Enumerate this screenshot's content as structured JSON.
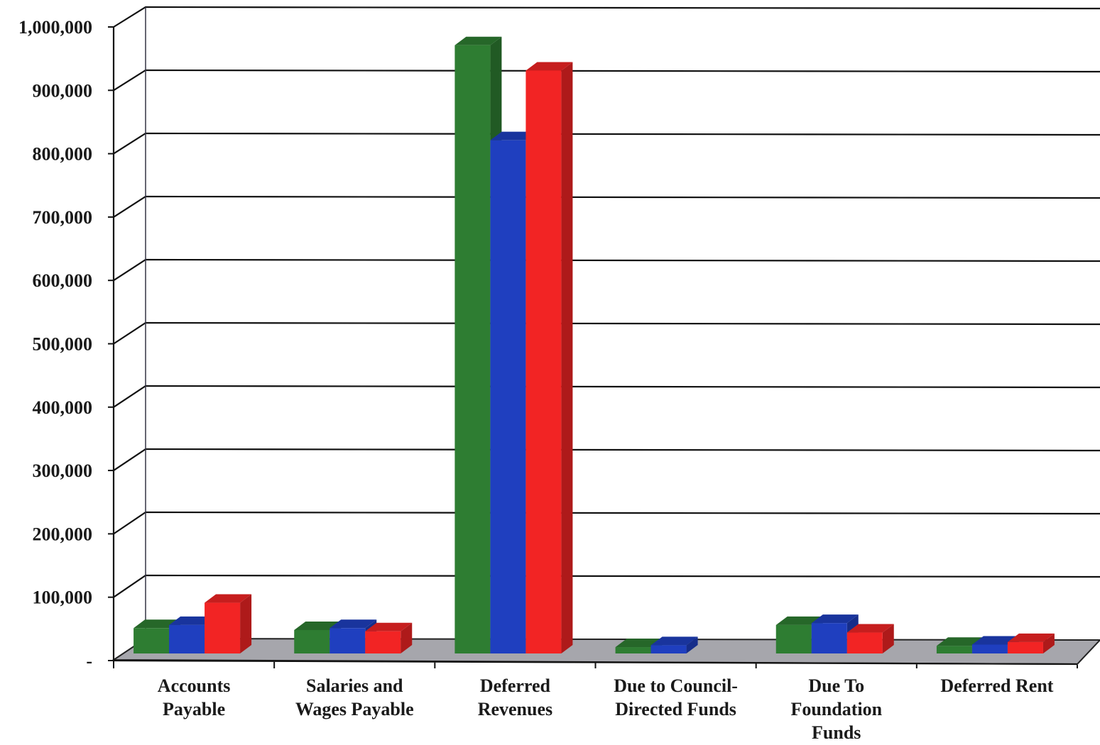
{
  "chart_data": {
    "type": "bar",
    "categories": [
      [
        "Accounts",
        "Payable"
      ],
      [
        "Salaries and",
        "Wages Payable"
      ],
      [
        "Deferred",
        "Revenues"
      ],
      [
        "Due to Council-",
        "Directed Funds"
      ],
      [
        "Due To",
        "Foundation",
        "Funds"
      ],
      [
        "Deferred Rent"
      ]
    ],
    "series": [
      {
        "color": "#2e7d32",
        "values": [
          40000,
          37000,
          960000,
          10000,
          45000,
          12000
        ]
      },
      {
        "color": "#1f3fbf",
        "values": [
          45000,
          40000,
          810000,
          13000,
          48000,
          14000
        ]
      },
      {
        "color": "#f22424",
        "values": [
          80000,
          35000,
          920000,
          0,
          33000,
          18000
        ]
      }
    ],
    "y_ticks": [
      "-",
      "100,000",
      "200,000",
      "300,000",
      "400,000",
      "500,000",
      "600,000",
      "700,000",
      "800,000",
      "900,000",
      "1,000,000"
    ],
    "ylim": [
      0,
      1000000
    ],
    "ystep": 100000,
    "grid": true,
    "legend": "none",
    "title": "",
    "xlabel": "",
    "ylabel": ""
  }
}
